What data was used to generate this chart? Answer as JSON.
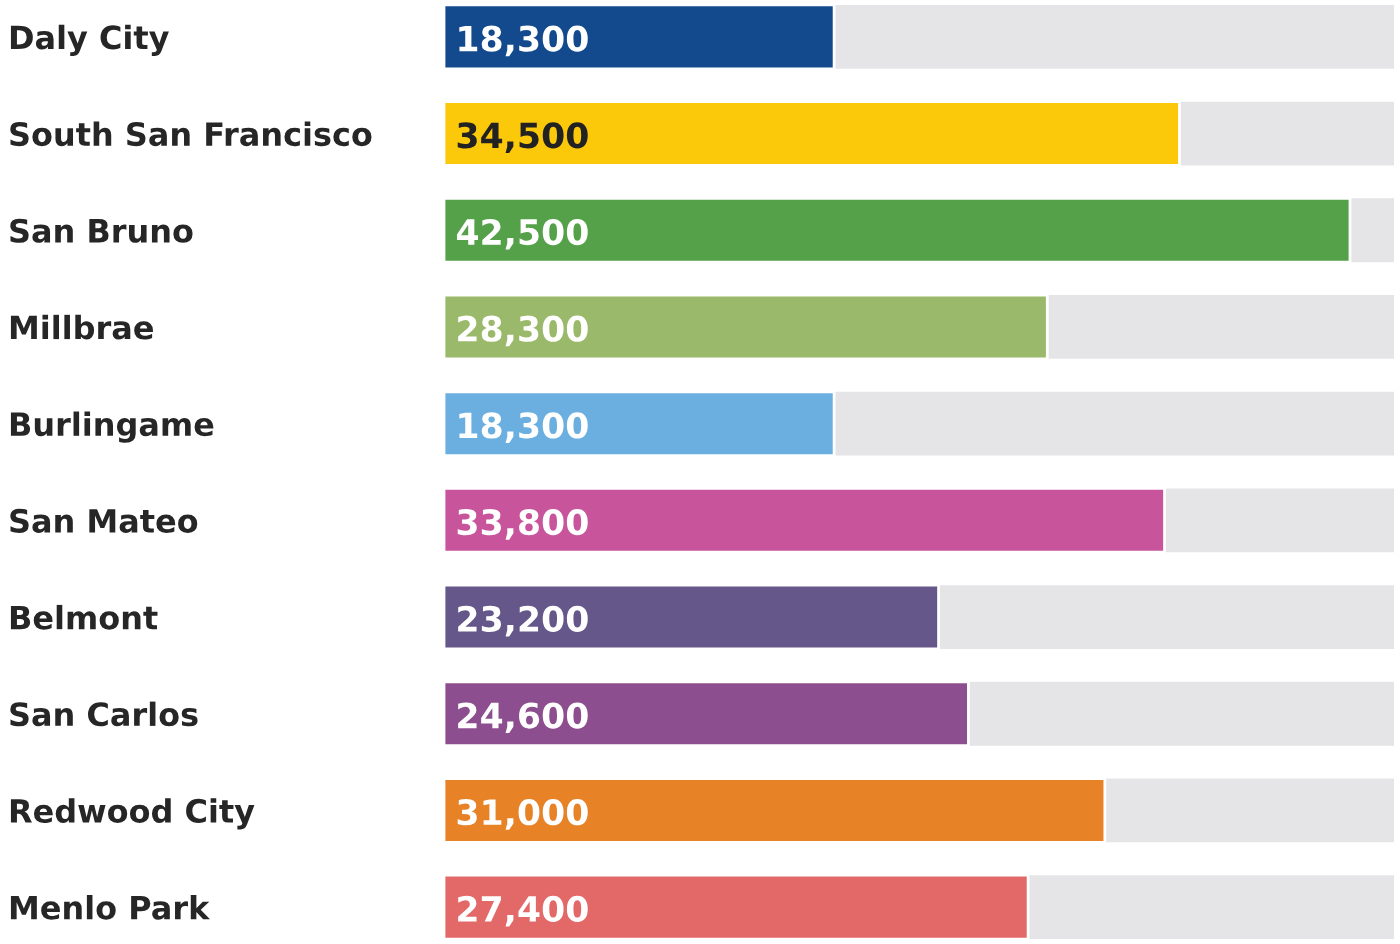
{
  "chart_data": {
    "type": "bar",
    "orientation": "horizontal",
    "categories": [
      "Daly City",
      "South San Francisco",
      "San Bruno",
      "Millbrae",
      "Burlingame",
      "San Mateo",
      "Belmont",
      "San Carlos",
      "Redwood City",
      "Menlo Park"
    ],
    "values": [
      18300,
      34500,
      42500,
      28300,
      18300,
      33800,
      23200,
      24600,
      31000,
      27400
    ],
    "value_labels": [
      "18,300",
      "34,500",
      "42,500",
      "28,300",
      "18,300",
      "33,800",
      "23,200",
      "24,600",
      "31,000",
      "27,400"
    ],
    "colors": [
      "#134a8e",
      "#fcc80a",
      "#55a14a",
      "#9bb96a",
      "#6aafdf",
      "#c8559c",
      "#65578a",
      "#8c4e8e",
      "#e88226",
      "#e36868"
    ],
    "grid": false,
    "legend": false
  }
}
